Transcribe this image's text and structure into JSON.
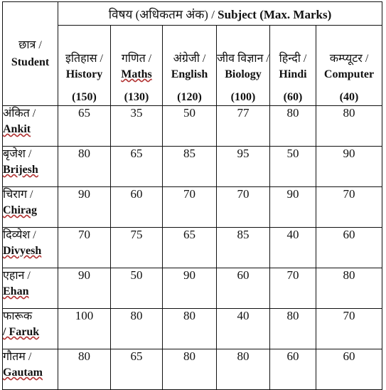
{
  "header": {
    "subject_hi": "विषय (अधिकतम अंक) / ",
    "subject_en": "Subject (Max. Marks)",
    "student_hi": "छात्र /",
    "student_en": "Student"
  },
  "subjects": [
    {
      "hi": "इतिहास /",
      "en": "History",
      "max": "(150)"
    },
    {
      "hi": "गणित /",
      "en": "Maths",
      "max": "(130)"
    },
    {
      "hi": "अंग्रेजी /",
      "en": "English",
      "max": "(120)"
    },
    {
      "hi": "जीव विज्ञान /",
      "en": "Biology",
      "max": "(100)"
    },
    {
      "hi": "हिन्दी /",
      "en": "Hindi",
      "max": "(60)"
    },
    {
      "hi": "कम्प्यूटर /",
      "en": "Computer",
      "max": "(40)"
    }
  ],
  "students": [
    {
      "hi": "अंकित /",
      "en": "Ankit",
      "marks": [
        "65",
        "35",
        "50",
        "77",
        "80",
        "80"
      ]
    },
    {
      "hi": "बृजेश /",
      "en": "Brijesh",
      "marks": [
        "80",
        "65",
        "85",
        "95",
        "50",
        "90"
      ]
    },
    {
      "hi": "चिराग /",
      "en": "Chirag",
      "marks": [
        "90",
        "60",
        "70",
        "70",
        "90",
        "70"
      ]
    },
    {
      "hi": "दिव्येश /",
      "en": "Divyesh",
      "marks": [
        "70",
        "75",
        "65",
        "85",
        "40",
        "60"
      ]
    },
    {
      "hi": "एहान /",
      "en": "Ehan",
      "marks": [
        "90",
        "50",
        "90",
        "60",
        "70",
        "80"
      ]
    },
    {
      "hi": "फारूक",
      "en": "/ Faruk",
      "marks": [
        "100",
        "80",
        "80",
        "40",
        "80",
        "70"
      ]
    },
    {
      "hi": "गौतम /",
      "en": "Gautam",
      "marks": [
        "80",
        "65",
        "80",
        "80",
        "60",
        "60"
      ]
    }
  ]
}
